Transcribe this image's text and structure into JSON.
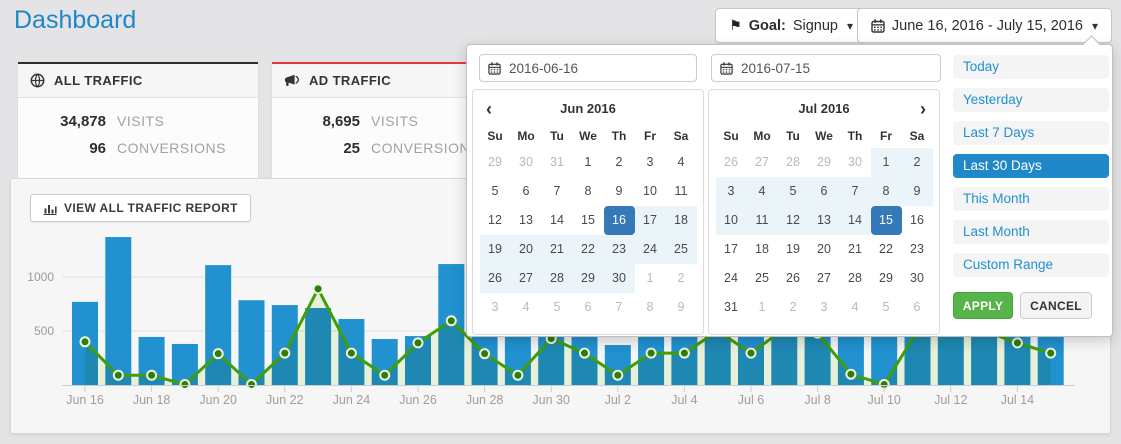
{
  "page": {
    "title": "Dashboard"
  },
  "header": {
    "goal_button": {
      "label_bold": "Goal:",
      "value": "Signup"
    },
    "date_range_button": {
      "label": "June 16, 2016 - July 15, 2016"
    }
  },
  "icons": {
    "flag": "⚑",
    "caret_down": "▾",
    "chevron_left": "‹",
    "chevron_right": "›"
  },
  "cards": [
    {
      "title": "ALL TRAFFIC",
      "accent": "#2f2f2f",
      "stats": [
        {
          "value": "34,878",
          "label": "VISITS"
        },
        {
          "value": "96",
          "label": "CONVERSIONS"
        }
      ]
    },
    {
      "title": "AD TRAFFIC",
      "accent": "#e23b3f",
      "stats": [
        {
          "value": "8,695",
          "label": "VISITS"
        },
        {
          "value": "25",
          "label": "CONVERSIONS"
        }
      ]
    }
  ],
  "toolbar": {
    "view_report_label": "VIEW ALL TRAFFIC REPORT"
  },
  "chart_data": {
    "type": "bar",
    "x": [
      "Jun 16",
      "Jun 17",
      "Jun 18",
      "Jun 19",
      "Jun 20",
      "Jun 21",
      "Jun 22",
      "Jun 23",
      "Jun 24",
      "Jun 25",
      "Jun 26",
      "Jun 27",
      "Jun 28",
      "Jun 29",
      "Jun 30",
      "Jul 1",
      "Jul 2",
      "Jul 3",
      "Jul 4",
      "Jul 5",
      "Jul 6",
      "Jul 7",
      "Jul 8",
      "Jul 9",
      "Jul 10",
      "Jul 11",
      "Jul 12",
      "Jul 13",
      "Jul 14",
      "Jul 15"
    ],
    "series": [
      {
        "name": "visits",
        "type": "bar",
        "color": "#2191d0",
        "values": [
          770,
          1370,
          445,
          380,
          1110,
          785,
          740,
          713,
          611,
          426,
          453,
          1120,
          900,
          750,
          820,
          650,
          370,
          780,
          860,
          700,
          920,
          640,
          770,
          690,
          1050,
          880,
          760,
          700,
          830,
          720
        ]
      },
      {
        "name": "conversions",
        "type": "line",
        "color": "#3f9e0a",
        "point_color": "#2c7e04",
        "values": [
          400,
          90,
          90,
          5,
          290,
          5,
          295,
          890,
          295,
          90,
          390,
          595,
          290,
          90,
          430,
          295,
          90,
          295,
          295,
          500,
          295,
          520,
          480,
          100,
          5,
          500,
          600,
          500,
          390,
          295
        ]
      }
    ],
    "visible_x_ticks": [
      "Jun 16",
      "Jun 18",
      "Jun 20",
      "Jun 22",
      "Jun 24",
      "Jun 26",
      "Jun 28",
      "Jun 30",
      "Jul 2",
      "Jul 4",
      "Jul 6",
      "Jul 8",
      "Jul 10",
      "Jul 12",
      "Jul 14"
    ],
    "yticks": [
      {
        "value": 500,
        "label": "500"
      },
      {
        "value": 1000,
        "label": "1000"
      }
    ],
    "ylim": [
      0,
      1400
    ],
    "area_fill": "#e9f0da",
    "grid": "on",
    "legend": "none",
    "title": "",
    "xlabel": "",
    "ylabel": ""
  },
  "datepicker": {
    "start_input": "2016-06-16",
    "end_input": "2016-07-15",
    "weekdays": [
      "Su",
      "Mo",
      "Tu",
      "We",
      "Th",
      "Fr",
      "Sa"
    ],
    "months": [
      {
        "title": "Jun 2016",
        "weeks": [
          [
            {
              "d": 29,
              "s": "off"
            },
            {
              "d": 30,
              "s": "off"
            },
            {
              "d": 31,
              "s": "off"
            },
            {
              "d": 1
            },
            {
              "d": 2
            },
            {
              "d": 3
            },
            {
              "d": 4
            }
          ],
          [
            {
              "d": 5
            },
            {
              "d": 6
            },
            {
              "d": 7
            },
            {
              "d": 8
            },
            {
              "d": 9
            },
            {
              "d": 10
            },
            {
              "d": 11
            }
          ],
          [
            {
              "d": 12
            },
            {
              "d": 13
            },
            {
              "d": 14
            },
            {
              "d": 15
            },
            {
              "d": 16,
              "s": "sel"
            },
            {
              "d": 17,
              "s": "in"
            },
            {
              "d": 18,
              "s": "in"
            }
          ],
          [
            {
              "d": 19,
              "s": "in"
            },
            {
              "d": 20,
              "s": "in"
            },
            {
              "d": 21,
              "s": "in"
            },
            {
              "d": 22,
              "s": "in"
            },
            {
              "d": 23,
              "s": "in"
            },
            {
              "d": 24,
              "s": "in"
            },
            {
              "d": 25,
              "s": "in"
            }
          ],
          [
            {
              "d": 26,
              "s": "in"
            },
            {
              "d": 27,
              "s": "in"
            },
            {
              "d": 28,
              "s": "in"
            },
            {
              "d": 29,
              "s": "in"
            },
            {
              "d": 30,
              "s": "in"
            },
            {
              "d": 1,
              "s": "off"
            },
            {
              "d": 2,
              "s": "off"
            }
          ],
          [
            {
              "d": 3,
              "s": "off"
            },
            {
              "d": 4,
              "s": "off"
            },
            {
              "d": 5,
              "s": "off"
            },
            {
              "d": 6,
              "s": "off"
            },
            {
              "d": 7,
              "s": "off"
            },
            {
              "d": 8,
              "s": "off"
            },
            {
              "d": 9,
              "s": "off"
            }
          ]
        ]
      },
      {
        "title": "Jul 2016",
        "weeks": [
          [
            {
              "d": 26,
              "s": "off"
            },
            {
              "d": 27,
              "s": "off"
            },
            {
              "d": 28,
              "s": "off"
            },
            {
              "d": 29,
              "s": "off"
            },
            {
              "d": 30,
              "s": "off"
            },
            {
              "d": 1,
              "s": "in"
            },
            {
              "d": 2,
              "s": "in"
            }
          ],
          [
            {
              "d": 3,
              "s": "in"
            },
            {
              "d": 4,
              "s": "in"
            },
            {
              "d": 5,
              "s": "in"
            },
            {
              "d": 6,
              "s": "in"
            },
            {
              "d": 7,
              "s": "in"
            },
            {
              "d": 8,
              "s": "in"
            },
            {
              "d": 9,
              "s": "in"
            }
          ],
          [
            {
              "d": 10,
              "s": "in"
            },
            {
              "d": 11,
              "s": "in"
            },
            {
              "d": 12,
              "s": "in"
            },
            {
              "d": 13,
              "s": "in"
            },
            {
              "d": 14,
              "s": "in"
            },
            {
              "d": 15,
              "s": "sel"
            },
            {
              "d": 16
            }
          ],
          [
            {
              "d": 17
            },
            {
              "d": 18
            },
            {
              "d": 19
            },
            {
              "d": 20
            },
            {
              "d": 21
            },
            {
              "d": 22
            },
            {
              "d": 23
            }
          ],
          [
            {
              "d": 24
            },
            {
              "d": 25
            },
            {
              "d": 26
            },
            {
              "d": 27
            },
            {
              "d": 28
            },
            {
              "d": 29
            },
            {
              "d": 30
            }
          ],
          [
            {
              "d": 31
            },
            {
              "d": 1,
              "s": "off"
            },
            {
              "d": 2,
              "s": "off"
            },
            {
              "d": 3,
              "s": "off"
            },
            {
              "d": 4,
              "s": "off"
            },
            {
              "d": 5,
              "s": "off"
            },
            {
              "d": 6,
              "s": "off"
            }
          ]
        ]
      }
    ],
    "ranges": [
      "Today",
      "Yesterday",
      "Last 7 Days",
      "Last 30 Days",
      "This Month",
      "Last Month",
      "Custom Range"
    ],
    "selected_range": "Last 30 Days",
    "apply_label": "APPLY",
    "cancel_label": "CANCEL"
  }
}
